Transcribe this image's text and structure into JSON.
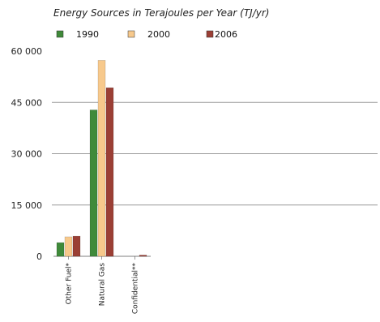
{
  "chart_data": {
    "type": "bar",
    "subtitle": "Energy Sources in Terajoules per Year (TJ/yr)",
    "categories": [
      "Other Fuel*",
      "Natural Gas",
      "Confidential**"
    ],
    "series": [
      {
        "name": "1990",
        "values": [
          4000,
          42800,
          0
        ],
        "color": "#3f8a3a"
      },
      {
        "name": "2000",
        "values": [
          5700,
          57300,
          0
        ],
        "color": "#f7c98c"
      },
      {
        "name": "2006",
        "values": [
          5900,
          49300,
          150
        ],
        "color": "#9b3f35"
      }
    ],
    "ylim": [
      0,
      60000
    ],
    "yticks": [
      0,
      15000,
      30000,
      45000,
      60000
    ],
    "ytick_labels": [
      "0",
      "15 000",
      "30 000",
      "45 000",
      "60 000"
    ],
    "grid": "horizontal",
    "legend_position": "top-left"
  }
}
